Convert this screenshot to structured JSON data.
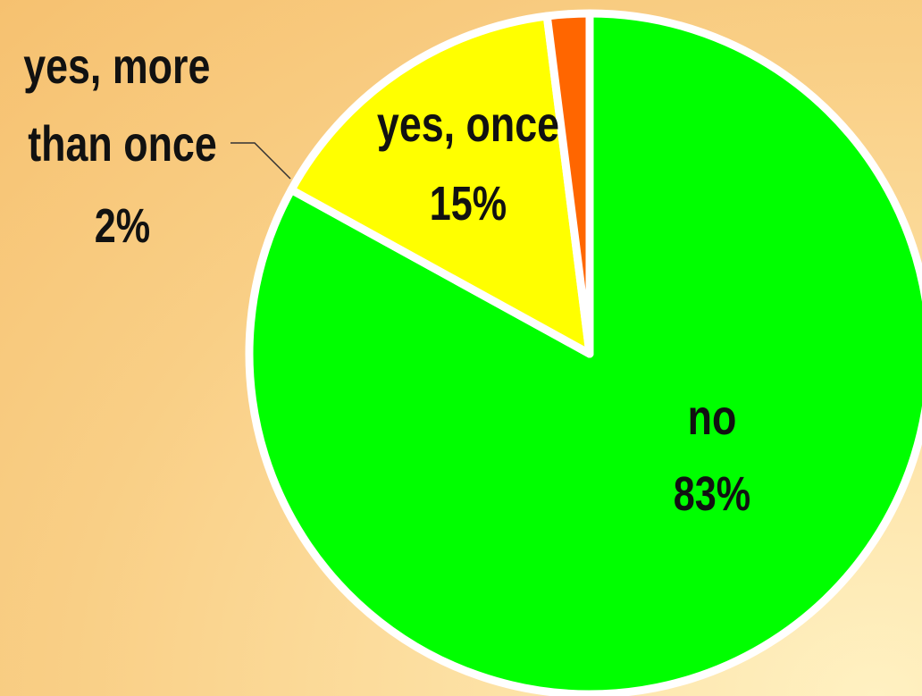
{
  "chart_data": {
    "type": "pie",
    "slices": [
      {
        "label": "no",
        "value": 83,
        "display": "83%",
        "color": "#00ff00"
      },
      {
        "label": "yes, once",
        "value": 15,
        "display": "15%",
        "color": "#ffff00"
      },
      {
        "label": "yes, more\nthan once",
        "value": 2,
        "display": "2%",
        "color": "#ff6600"
      }
    ]
  }
}
